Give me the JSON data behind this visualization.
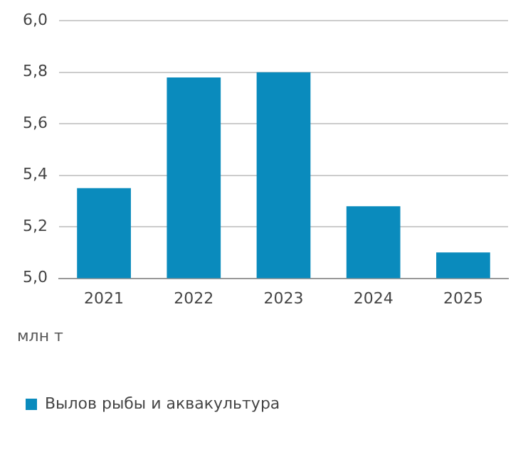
{
  "chart_data": {
    "type": "bar",
    "categories": [
      "2021",
      "2022",
      "2023",
      "2024",
      "2025"
    ],
    "series": [
      {
        "name": "Вылов рыбы и аквакультура",
        "color": "#0a8bbd",
        "values": [
          5.35,
          5.78,
          5.8,
          5.28,
          5.1
        ]
      }
    ],
    "ylim": [
      5.0,
      6.0
    ],
    "yticks": [
      {
        "value": 5.0,
        "label": "5,0"
      },
      {
        "value": 5.2,
        "label": "5,2"
      },
      {
        "value": 5.4,
        "label": "5,4"
      },
      {
        "value": 5.6,
        "label": "5,6"
      },
      {
        "value": 5.8,
        "label": "5,8"
      },
      {
        "value": 6.0,
        "label": "6,0"
      }
    ],
    "grid": "y",
    "legend": "bottom left",
    "annotations": [
      "млн т"
    ]
  }
}
